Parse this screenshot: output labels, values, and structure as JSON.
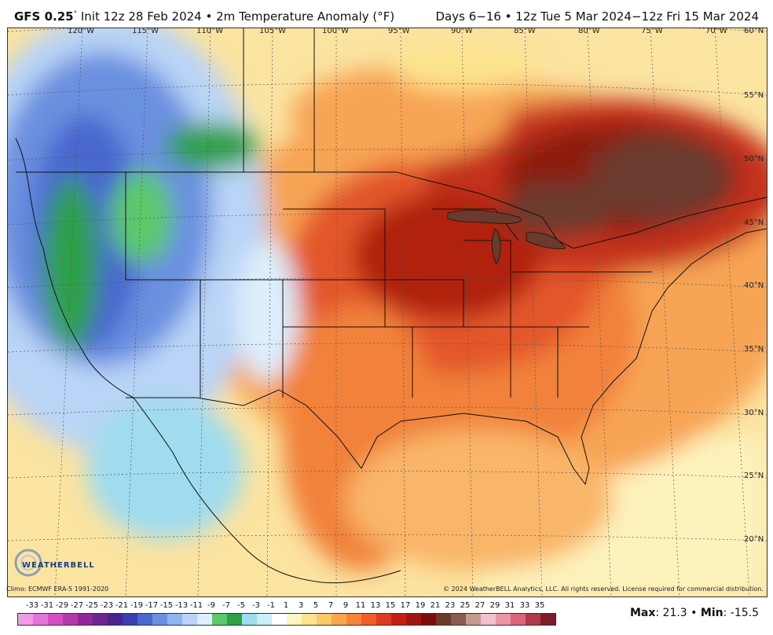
{
  "header": {
    "model": "GFS 0.25",
    "degree": "°",
    "init": "Init 12z 28 Feb 2024",
    "bullet": "•",
    "product": "2m Temperature Anomaly (°F)",
    "valid": "Days 6−16 • 12z Tue 5 Mar 2024−12z Fri 15 Mar 2024"
  },
  "longitudes": [
    "120°W",
    "115°W",
    "110°W",
    "105°W",
    "100°W",
    "95°W",
    "90°W",
    "85°W",
    "80°W",
    "75°W",
    "70°W"
  ],
  "latitudes": [
    "60°N",
    "55°N",
    "50°N",
    "45°N",
    "40°N",
    "35°N",
    "30°N",
    "25°N",
    "20°N"
  ],
  "credits": {
    "climo": "Climo: ECMWF ERA-5 1991-2020",
    "copyright": "© 2024 WeatherBELL Analytics, LLC. All rights reserved. License required for commercial distribution."
  },
  "logo": {
    "text": "WEATHERBELL"
  },
  "colorbar": {
    "labels": [
      "-33",
      "-31",
      "-29",
      "-27",
      "-25",
      "-23",
      "-21",
      "-19",
      "-17",
      "-15",
      "-13",
      "-11",
      "-9",
      "-7",
      "-5",
      "-3",
      "-1",
      "1",
      "3",
      "5",
      "7",
      "9",
      "11",
      "13",
      "15",
      "17",
      "19",
      "21",
      "23",
      "25",
      "27",
      "29",
      "31",
      "33",
      "35"
    ],
    "colors": [
      "#f29be8",
      "#e573d9",
      "#d44fc6",
      "#b33aa8",
      "#8c2b96",
      "#6a2590",
      "#4a238f",
      "#3a3fb0",
      "#4a67cf",
      "#6a90e0",
      "#8fb5ee",
      "#b9d4f6",
      "#ddeefc",
      "#5cc86a",
      "#2ea046",
      "#9fdcef",
      "#cbeff7",
      "#ffffff",
      "#fdf6c2",
      "#fde38c",
      "#fbc86a",
      "#f9a74c",
      "#f5853a",
      "#f05f2a",
      "#df3b1e",
      "#c51f14",
      "#a31510",
      "#7d0d0b",
      "#6a3b2d",
      "#8a5c51",
      "#c79a90",
      "#f3c0cf",
      "#ec94a2",
      "#d9657a",
      "#b03a4c",
      "#7a1f2a"
    ]
  },
  "stats": {
    "max_label": "Max",
    "max": "21.3",
    "sep": "•",
    "min_label": "Min",
    "min": "-15.5"
  }
}
